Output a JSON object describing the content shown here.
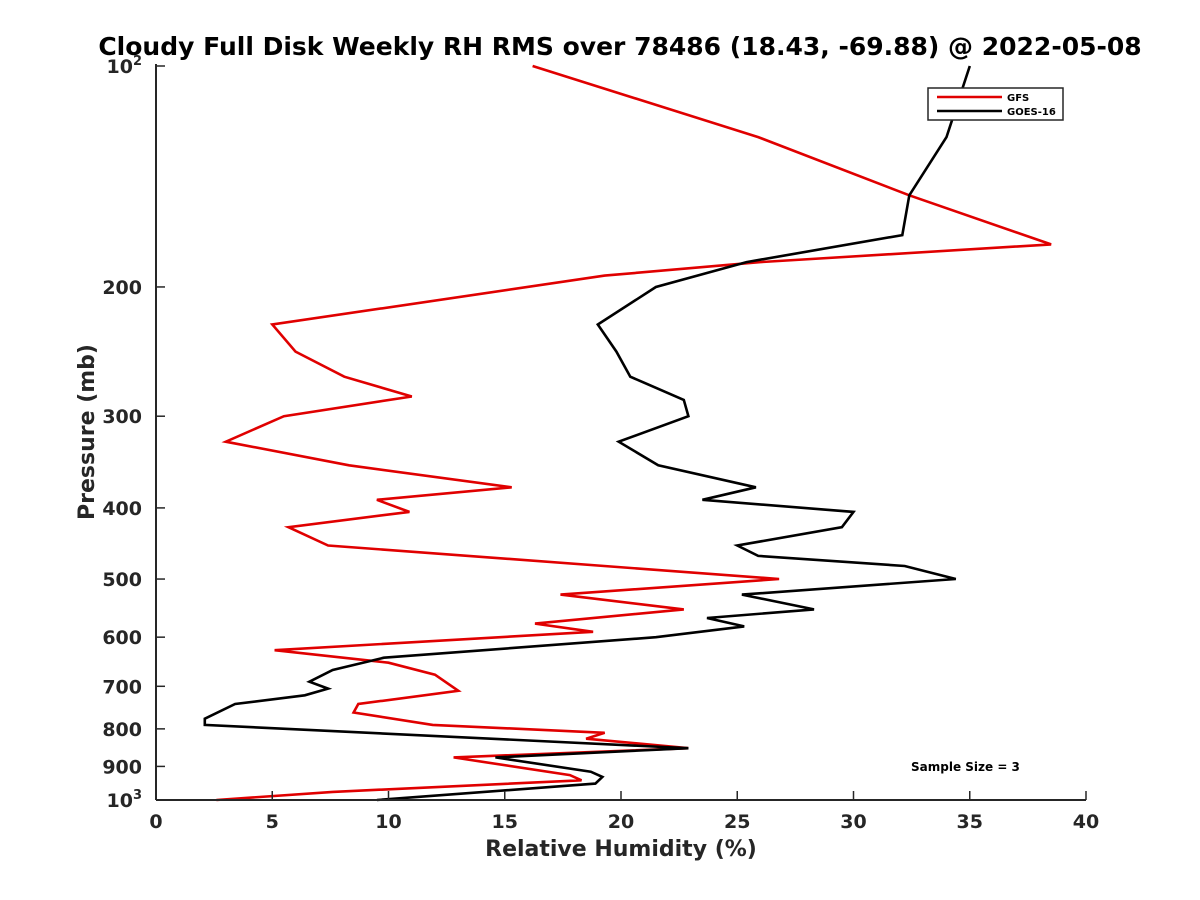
{
  "chart_data": {
    "type": "line",
    "title": "Cloudy Full Disk Weekly RH RMS over 78486 (18.43, -69.88) @ 2022-05-08",
    "xlabel": "Relative Humidity (%)",
    "ylabel": "Pressure (mb)",
    "xlim": [
      0,
      40
    ],
    "ylim": [
      100,
      1000
    ],
    "y_scale": "log",
    "y_reversed": true,
    "x_ticks": [
      "0",
      "5",
      "10",
      "15",
      "20",
      "25",
      "30",
      "35",
      "40"
    ],
    "y_ticks": [
      {
        "value": 100,
        "label": "10",
        "sup": "2"
      },
      {
        "value": 200,
        "label": "200",
        "sup": ""
      },
      {
        "value": 300,
        "label": "300",
        "sup": ""
      },
      {
        "value": 400,
        "label": "400",
        "sup": ""
      },
      {
        "value": 500,
        "label": "500",
        "sup": ""
      },
      {
        "value": 600,
        "label": "600",
        "sup": ""
      },
      {
        "value": 700,
        "label": "700",
        "sup": ""
      },
      {
        "value": 800,
        "label": "800",
        "sup": ""
      },
      {
        "value": 900,
        "label": "900",
        "sup": ""
      },
      {
        "value": 1000,
        "label": "10",
        "sup": "3"
      }
    ],
    "legend_position": "top-right",
    "annotation": "Sample Size = 3",
    "series": [
      {
        "name": "GFS",
        "color": "#e00000",
        "points": [
          [
            16.2,
            100
          ],
          [
            25.9,
            125
          ],
          [
            32.4,
            150
          ],
          [
            38.5,
            175
          ],
          [
            26.0,
            185
          ],
          [
            19.3,
            193
          ],
          [
            5.0,
            225
          ],
          [
            6.0,
            245
          ],
          [
            8.1,
            265
          ],
          [
            11.0,
            282
          ],
          [
            5.5,
            300
          ],
          [
            3.0,
            325
          ],
          [
            8.3,
            350
          ],
          [
            15.3,
            375
          ],
          [
            9.5,
            390
          ],
          [
            10.9,
            405
          ],
          [
            5.7,
            425
          ],
          [
            7.4,
            450
          ],
          [
            26.8,
            500
          ],
          [
            17.4,
            525
          ],
          [
            22.7,
            550
          ],
          [
            16.3,
            575
          ],
          [
            18.8,
            590
          ],
          [
            5.1,
            625
          ],
          [
            10.0,
            650
          ],
          [
            12.0,
            675
          ],
          [
            13.0,
            710
          ],
          [
            8.7,
            740
          ],
          [
            8.5,
            760
          ],
          [
            11.9,
            790
          ],
          [
            19.3,
            810
          ],
          [
            18.5,
            825
          ],
          [
            22.9,
            850
          ],
          [
            12.8,
            875
          ],
          [
            17.8,
            925
          ],
          [
            18.3,
            940
          ],
          [
            7.6,
            975
          ],
          [
            2.6,
            1000
          ]
        ]
      },
      {
        "name": "GOES-16",
        "color": "#000000",
        "points": [
          [
            35.0,
            100
          ],
          [
            34.0,
            125
          ],
          [
            32.4,
            150
          ],
          [
            32.1,
            170
          ],
          [
            25.4,
            185
          ],
          [
            21.5,
            200
          ],
          [
            19.0,
            225
          ],
          [
            19.8,
            245
          ],
          [
            20.4,
            265
          ],
          [
            22.7,
            285
          ],
          [
            22.9,
            300
          ],
          [
            19.9,
            325
          ],
          [
            21.6,
            350
          ],
          [
            25.8,
            375
          ],
          [
            23.5,
            390
          ],
          [
            30.0,
            405
          ],
          [
            29.5,
            425
          ],
          [
            25.0,
            450
          ],
          [
            25.9,
            465
          ],
          [
            32.2,
            480
          ],
          [
            34.4,
            500
          ],
          [
            25.2,
            525
          ],
          [
            28.3,
            550
          ],
          [
            23.7,
            565
          ],
          [
            25.3,
            580
          ],
          [
            21.5,
            600
          ],
          [
            9.8,
            640
          ],
          [
            7.6,
            665
          ],
          [
            6.6,
            690
          ],
          [
            7.4,
            705
          ],
          [
            6.4,
            720
          ],
          [
            3.4,
            740
          ],
          [
            2.1,
            775
          ],
          [
            2.1,
            790
          ],
          [
            22.9,
            850
          ],
          [
            14.6,
            875
          ],
          [
            18.7,
            915
          ],
          [
            19.2,
            930
          ],
          [
            18.9,
            950
          ],
          [
            9.5,
            1000
          ]
        ]
      }
    ]
  }
}
